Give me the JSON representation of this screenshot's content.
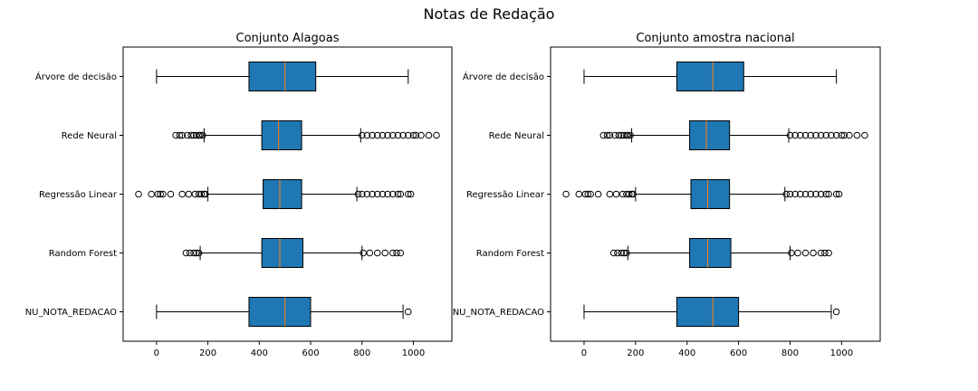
{
  "suptitle": "Notas de Redação",
  "colors": {
    "box_fill": "#1f77b4",
    "median": "#ff7f0e",
    "line": "#000000"
  },
  "chart_data": [
    {
      "type": "boxplot",
      "orientation": "horizontal",
      "title": "Conjunto Alagoas",
      "xlim": [
        -130,
        1150
      ],
      "xticks": [
        0,
        200,
        400,
        600,
        800,
        1000
      ],
      "categories": [
        "Árvore de decisão",
        "Rede Neural",
        "Regressão Linear",
        "Random Forest",
        "NU_NOTA_REDACAO"
      ],
      "boxes": [
        {
          "label": "Árvore de decisão",
          "whislo": 0,
          "q1": 360,
          "med": 500,
          "q3": 620,
          "whishi": 980,
          "fliers": []
        },
        {
          "label": "Rede Neural",
          "whislo": 185,
          "q1": 410,
          "med": 475,
          "q3": 565,
          "whishi": 795,
          "fliers": [
            75,
            90,
            100,
            120,
            135,
            145,
            155,
            165,
            170,
            180,
            800,
            820,
            840,
            860,
            880,
            900,
            920,
            940,
            960,
            980,
            1000,
            1010,
            1030,
            1060,
            1090
          ]
        },
        {
          "label": "Regressão Linear",
          "whislo": 200,
          "q1": 415,
          "med": 480,
          "q3": 565,
          "whishi": 780,
          "fliers": [
            -70,
            -20,
            5,
            15,
            25,
            55,
            100,
            125,
            150,
            165,
            175,
            185,
            190,
            785,
            800,
            820,
            840,
            860,
            880,
            900,
            920,
            940,
            950,
            980,
            990
          ]
        },
        {
          "label": "Random Forest",
          "whislo": 170,
          "q1": 410,
          "med": 480,
          "q3": 570,
          "whishi": 800,
          "fliers": [
            115,
            130,
            145,
            155,
            165,
            805,
            830,
            860,
            890,
            920,
            935,
            950
          ]
        },
        {
          "label": "NU_NOTA_REDACAO",
          "whislo": 0,
          "q1": 360,
          "med": 500,
          "q3": 600,
          "whishi": 960,
          "fliers": [
            980
          ]
        }
      ]
    },
    {
      "type": "boxplot",
      "orientation": "horizontal",
      "title": "Conjunto amostra nacional",
      "xlim": [
        -130,
        1150
      ],
      "xticks": [
        0,
        200,
        400,
        600,
        800,
        1000
      ],
      "categories": [
        "Árvore de decisão",
        "Rede Neural",
        "Regressão Linear",
        "Random Forest",
        "NU_NOTA_REDACAO"
      ],
      "boxes": [
        {
          "label": "Árvore de decisão",
          "whislo": 0,
          "q1": 360,
          "med": 500,
          "q3": 620,
          "whishi": 980,
          "fliers": []
        },
        {
          "label": "Rede Neural",
          "whislo": 185,
          "q1": 410,
          "med": 475,
          "q3": 565,
          "whishi": 795,
          "fliers": [
            75,
            90,
            100,
            120,
            135,
            145,
            155,
            165,
            170,
            180,
            800,
            820,
            840,
            860,
            880,
            900,
            920,
            940,
            960,
            980,
            1000,
            1010,
            1030,
            1060,
            1090
          ]
        },
        {
          "label": "Regressão Linear",
          "whislo": 200,
          "q1": 415,
          "med": 480,
          "q3": 565,
          "whishi": 780,
          "fliers": [
            -70,
            -20,
            5,
            15,
            25,
            55,
            100,
            125,
            150,
            165,
            175,
            185,
            190,
            785,
            800,
            820,
            840,
            860,
            880,
            900,
            920,
            940,
            950,
            980,
            990
          ]
        },
        {
          "label": "Random Forest",
          "whislo": 170,
          "q1": 410,
          "med": 480,
          "q3": 570,
          "whishi": 800,
          "fliers": [
            115,
            130,
            145,
            155,
            165,
            805,
            830,
            860,
            890,
            920,
            935,
            950
          ]
        },
        {
          "label": "NU_NOTA_REDACAO",
          "whislo": 0,
          "q1": 360,
          "med": 500,
          "q3": 600,
          "whishi": 960,
          "fliers": [
            980
          ]
        }
      ]
    }
  ]
}
